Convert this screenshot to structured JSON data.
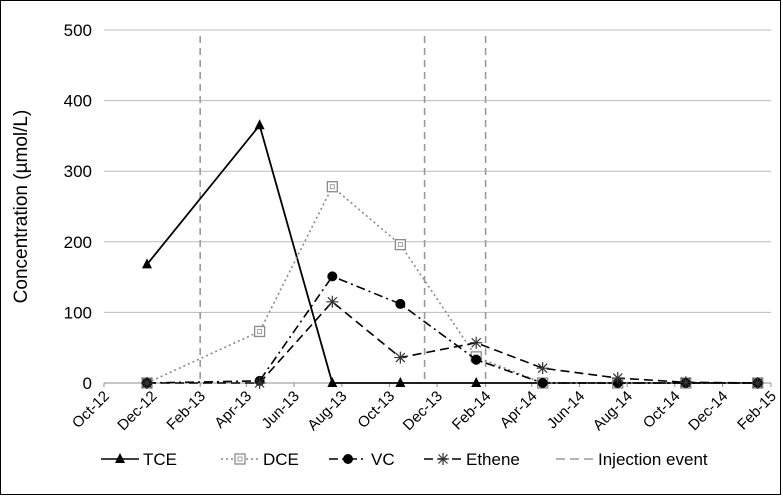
{
  "chart_data": {
    "type": "line",
    "title": "",
    "xlabel": "",
    "ylabel": "Concentration (µmol/L)",
    "ylim": [
      0,
      500
    ],
    "yticks": [
      0,
      100,
      200,
      300,
      400,
      500
    ],
    "xticks": [
      {
        "label": "Oct-12",
        "date": "2012-10-01"
      },
      {
        "label": "Dec-12",
        "date": "2012-12-01"
      },
      {
        "label": "Feb-13",
        "date": "2013-02-01"
      },
      {
        "label": "Apr-13",
        "date": "2013-04-01"
      },
      {
        "label": "Jun-13",
        "date": "2013-06-01"
      },
      {
        "label": "Aug-13",
        "date": "2013-08-01"
      },
      {
        "label": "Oct-13",
        "date": "2013-10-01"
      },
      {
        "label": "Dec-13",
        "date": "2013-12-01"
      },
      {
        "label": "Feb-14",
        "date": "2014-02-01"
      },
      {
        "label": "Apr-14",
        "date": "2014-04-01"
      },
      {
        "label": "Jun-14",
        "date": "2014-06-01"
      },
      {
        "label": "Aug-14",
        "date": "2014-08-01"
      },
      {
        "label": "Oct-14",
        "date": "2014-10-01"
      },
      {
        "label": "Dec-14",
        "date": "2014-12-01"
      },
      {
        "label": "Feb-15",
        "date": "2015-02-01"
      }
    ],
    "xlim": [
      "2012-10-01",
      "2015-02-01"
    ],
    "grid": "horizontal",
    "legend_position": "bottom",
    "series": [
      {
        "name": "TCE",
        "marker": "triangle-filled",
        "line": "solid",
        "color": "#000000",
        "points": [
          {
            "x": "2012-11-25",
            "y": 168
          },
          {
            "x": "2013-04-18",
            "y": 365
          },
          {
            "x": "2013-07-20",
            "y": 0
          },
          {
            "x": "2013-10-15",
            "y": 0
          },
          {
            "x": "2014-01-20",
            "y": 0
          },
          {
            "x": "2014-04-15",
            "y": 0
          },
          {
            "x": "2014-07-20",
            "y": 0
          },
          {
            "x": "2014-10-15",
            "y": 0
          },
          {
            "x": "2015-01-15",
            "y": 0
          }
        ]
      },
      {
        "name": "DCE",
        "marker": "square-open",
        "line": "dotted",
        "color": "#9a9a9a",
        "points": [
          {
            "x": "2012-11-25",
            "y": 0
          },
          {
            "x": "2013-04-18",
            "y": 73
          },
          {
            "x": "2013-07-20",
            "y": 278
          },
          {
            "x": "2013-10-15",
            "y": 196
          },
          {
            "x": "2014-01-20",
            "y": 37
          },
          {
            "x": "2014-04-15",
            "y": 0
          },
          {
            "x": "2014-07-20",
            "y": 0
          },
          {
            "x": "2014-10-15",
            "y": 0
          },
          {
            "x": "2015-01-15",
            "y": 0
          }
        ]
      },
      {
        "name": "VC",
        "marker": "circle-filled",
        "line": "dashdot",
        "color": "#000000",
        "points": [
          {
            "x": "2012-11-25",
            "y": 0
          },
          {
            "x": "2013-04-18",
            "y": 3
          },
          {
            "x": "2013-07-20",
            "y": 151
          },
          {
            "x": "2013-10-15",
            "y": 112
          },
          {
            "x": "2014-01-20",
            "y": 33
          },
          {
            "x": "2014-04-15",
            "y": 0
          },
          {
            "x": "2014-07-20",
            "y": 0
          },
          {
            "x": "2014-10-15",
            "y": 0
          },
          {
            "x": "2015-01-15",
            "y": 0
          }
        ]
      },
      {
        "name": "Ethene",
        "marker": "star",
        "line": "dashed",
        "color": "#000000",
        "points": [
          {
            "x": "2012-11-25",
            "y": 0
          },
          {
            "x": "2013-04-18",
            "y": 0
          },
          {
            "x": "2013-07-20",
            "y": 115
          },
          {
            "x": "2013-10-15",
            "y": 36
          },
          {
            "x": "2014-01-20",
            "y": 57
          },
          {
            "x": "2014-04-15",
            "y": 21
          },
          {
            "x": "2014-07-20",
            "y": 7
          },
          {
            "x": "2014-10-15",
            "y": 1
          },
          {
            "x": "2015-01-15",
            "y": 0
          }
        ]
      }
    ],
    "injection_event": {
      "name": "Injection event",
      "line": "dashed",
      "color": "#9a9a9a",
      "dates": [
        "2013-02-01",
        "2013-11-15",
        "2014-02-01"
      ]
    }
  }
}
